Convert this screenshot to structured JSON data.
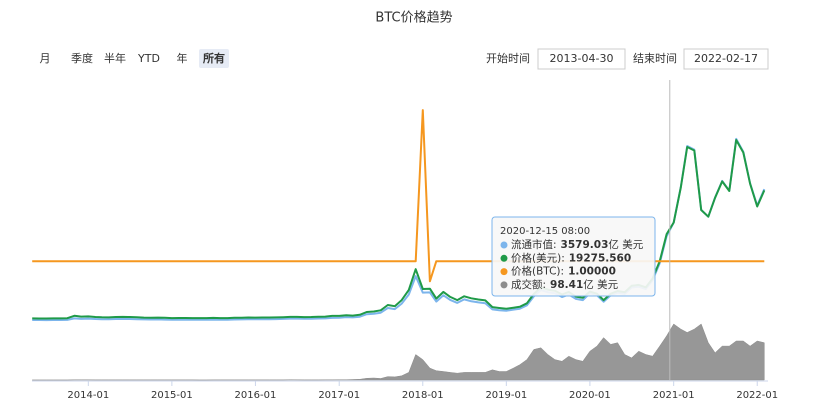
{
  "range_selector": {
    "buttons": [
      "月",
      "季度",
      "半年",
      "YTD",
      "年",
      "所有"
    ],
    "selected": 5,
    "start_label": "开始时间",
    "end_label": "结束时间"
  },
  "chart_data": {
    "type": "line",
    "title": "BTC价格趋势",
    "xlim": [
      "2013-04-30",
      "2022-02-17"
    ],
    "xticks": [
      "2014-01",
      "2015-01",
      "2016-01",
      "2017-01",
      "2018-01",
      "2019-01",
      "2020-01",
      "2021-01",
      "2022-01"
    ],
    "x": [
      "2013-05",
      "2013-06",
      "2013-07",
      "2013-08",
      "2013-09",
      "2013-10",
      "2013-11",
      "2013-12",
      "2014-01",
      "2014-02",
      "2014-03",
      "2014-04",
      "2014-05",
      "2014-06",
      "2014-07",
      "2014-08",
      "2014-09",
      "2014-10",
      "2014-11",
      "2014-12",
      "2015-01",
      "2015-02",
      "2015-03",
      "2015-04",
      "2015-05",
      "2015-06",
      "2015-07",
      "2015-08",
      "2015-09",
      "2015-10",
      "2015-11",
      "2015-12",
      "2016-01",
      "2016-02",
      "2016-03",
      "2016-04",
      "2016-05",
      "2016-06",
      "2016-07",
      "2016-08",
      "2016-09",
      "2016-10",
      "2016-11",
      "2016-12",
      "2017-01",
      "2017-02",
      "2017-03",
      "2017-04",
      "2017-05",
      "2017-06",
      "2017-07",
      "2017-08",
      "2017-09",
      "2017-10",
      "2017-11",
      "2017-12",
      "2018-01",
      "2018-02",
      "2018-03",
      "2018-04",
      "2018-05",
      "2018-06",
      "2018-07",
      "2018-08",
      "2018-09",
      "2018-10",
      "2018-11",
      "2018-12",
      "2019-01",
      "2019-02",
      "2019-03",
      "2019-04",
      "2019-05",
      "2019-06",
      "2019-07",
      "2019-08",
      "2019-09",
      "2019-10",
      "2019-11",
      "2019-12",
      "2020-01",
      "2020-02",
      "2020-03",
      "2020-04",
      "2020-05",
      "2020-06",
      "2020-07",
      "2020-08",
      "2020-09",
      "2020-10",
      "2020-11",
      "2020-12",
      "2021-01",
      "2021-02",
      "2021-03",
      "2021-04",
      "2021-05",
      "2021-06",
      "2021-07",
      "2021-08",
      "2021-09",
      "2021-10",
      "2021-11",
      "2021-12",
      "2022-01",
      "2022-02"
    ],
    "series": [
      {
        "name": "成交额",
        "type": "area",
        "color": "#8c8c8c",
        "ylim": [
          0,
          1650
        ],
        "values": [
          0.1,
          0.1,
          0.1,
          0.1,
          0.1,
          0.2,
          1,
          1,
          1,
          0.8,
          0.6,
          0.5,
          0.5,
          0.5,
          0.4,
          0.3,
          0.3,
          0.3,
          0.3,
          0.3,
          0.5,
          0.3,
          0.3,
          0.3,
          0.2,
          0.2,
          0.3,
          0.4,
          0.3,
          0.4,
          0.8,
          0.6,
          0.6,
          0.6,
          0.5,
          0.6,
          0.8,
          1.5,
          1.2,
          0.8,
          0.7,
          0.8,
          0.9,
          1.2,
          2,
          2,
          3,
          4,
          10,
          12,
          9,
          20,
          18,
          25,
          45,
          150,
          120,
          70,
          55,
          50,
          45,
          40,
          45,
          45,
          45,
          45,
          60,
          50,
          50,
          70,
          90,
          120,
          180,
          190,
          150,
          120,
          110,
          140,
          120,
          110,
          170,
          200,
          250,
          210,
          220,
          150,
          130,
          170,
          150,
          140,
          200,
          260,
          330,
          300,
          280,
          300,
          330,
          220,
          160,
          200,
          200,
          230,
          230,
          200,
          230,
          220
        ]
      },
      {
        "name": "流通市值",
        "type": "line",
        "color": "#7cb5ec",
        "ylim": [
          -3800,
          14000
        ],
        "values": [
          13.8,
          11.5,
          10.9,
          13.8,
          15.0,
          23,
          115,
          86,
          104,
          78,
          65,
          58.5,
          78,
          80.6,
          78,
          65,
          52,
          45.5,
          49.4,
          41.6,
          31.5,
          35.8,
          37.2,
          32.9,
          34.3,
          32.9,
          40.0,
          32.9,
          34.3,
          44.3,
          50.1,
          61.5,
          59.3,
          67.1,
          65.5,
          70.2,
          82.7,
          101.4,
          101.4,
          90.5,
          95.2,
          109.2,
          115.4,
          149.8,
          160,
          196,
          177,
          223,
          380,
          413,
          479,
          776,
          710,
          1056,
          1634,
          2805,
          1754,
          1772,
          1187,
          1582,
          1290,
          1101,
          1324,
          1204,
          1135,
          1084,
          688,
          636,
          605,
          676,
          730,
          943,
          1513,
          1922,
          1780,
          1709,
          1477,
          1638,
          1353,
          1282,
          1711,
          1582,
          1178,
          1582,
          1748,
          1674,
          2079,
          2134,
          1987,
          2539,
          3625,
          5336,
          6204,
          8460,
          11073,
          10848,
          7012,
          6580,
          7802,
          8855,
          8234,
          11524,
          10716,
          8704,
          7296,
          8338
        ]
      },
      {
        "name": "价格(美元)",
        "type": "line",
        "color": "#1f9a48",
        "ylim": [
          -21000,
          75000
        ],
        "values": [
          120,
          100,
          95,
          120,
          130,
          200,
          1000,
          750,
          800,
          600,
          500,
          450,
          600,
          620,
          600,
          500,
          400,
          350,
          380,
          320,
          220,
          250,
          260,
          230,
          240,
          230,
          280,
          230,
          240,
          310,
          350,
          430,
          380,
          430,
          420,
          450,
          530,
          650,
          650,
          580,
          610,
          700,
          740,
          960,
          970,
          1190,
          1070,
          1350,
          2300,
          2500,
          2900,
          4700,
          4300,
          6400,
          9900,
          17000,
          10200,
          10300,
          6900,
          9200,
          7500,
          6400,
          7700,
          7000,
          6600,
          6300,
          4000,
          3700,
          3400,
          3800,
          4100,
          5300,
          8500,
          10800,
          10000,
          9600,
          8300,
          9200,
          7600,
          7200,
          9300,
          8600,
          6400,
          8600,
          9500,
          9100,
          11300,
          11600,
          10800,
          13800,
          19700,
          29000,
          33000,
          45000,
          58900,
          57700,
          37300,
          35000,
          41500,
          47100,
          43800,
          61300,
          57000,
          46300,
          38500,
          44000
        ]
      },
      {
        "name": "价格(BTC)",
        "type": "line",
        "color": "#f5971f",
        "ylim": [
          0.41,
          1.8
        ],
        "values": [
          1,
          1,
          1,
          1,
          1,
          1,
          1,
          1,
          1,
          1,
          1,
          1,
          1,
          1,
          1,
          1,
          1,
          1,
          1,
          1,
          1,
          1,
          1,
          1,
          1,
          1,
          1,
          1,
          1,
          1,
          1,
          1,
          1,
          1,
          1,
          1,
          1,
          1,
          1,
          1,
          1,
          1,
          1,
          1,
          1,
          1,
          1,
          1,
          1,
          1,
          1,
          1,
          1,
          1,
          1,
          1,
          1.75,
          0.9,
          1,
          1,
          1,
          1,
          1,
          1,
          1,
          1,
          1,
          1,
          1,
          1,
          1,
          1,
          1,
          1,
          1,
          1,
          1,
          1,
          1,
          1,
          1,
          1,
          1,
          1,
          1,
          1,
          1,
          1,
          1,
          1,
          1,
          1,
          1,
          1,
          1,
          1,
          1,
          1,
          1,
          1,
          1,
          1,
          1,
          1,
          1,
          1
        ]
      }
    ],
    "tooltip": {
      "date": "2020-12-15 08:00",
      "items": [
        {
          "series": 1,
          "label": "流通市值:",
          "value": "3579.03",
          "unit": "亿 美元"
        },
        {
          "series": 2,
          "label": "价格(美元):",
          "value": "19275.560"
        },
        {
          "series": 3,
          "label": "价格(BTC):",
          "value": "1.00000"
        },
        {
          "series": 0,
          "label": "成交额:",
          "value": "98.41",
          "unit": "亿 美元"
        }
      ]
    }
  }
}
